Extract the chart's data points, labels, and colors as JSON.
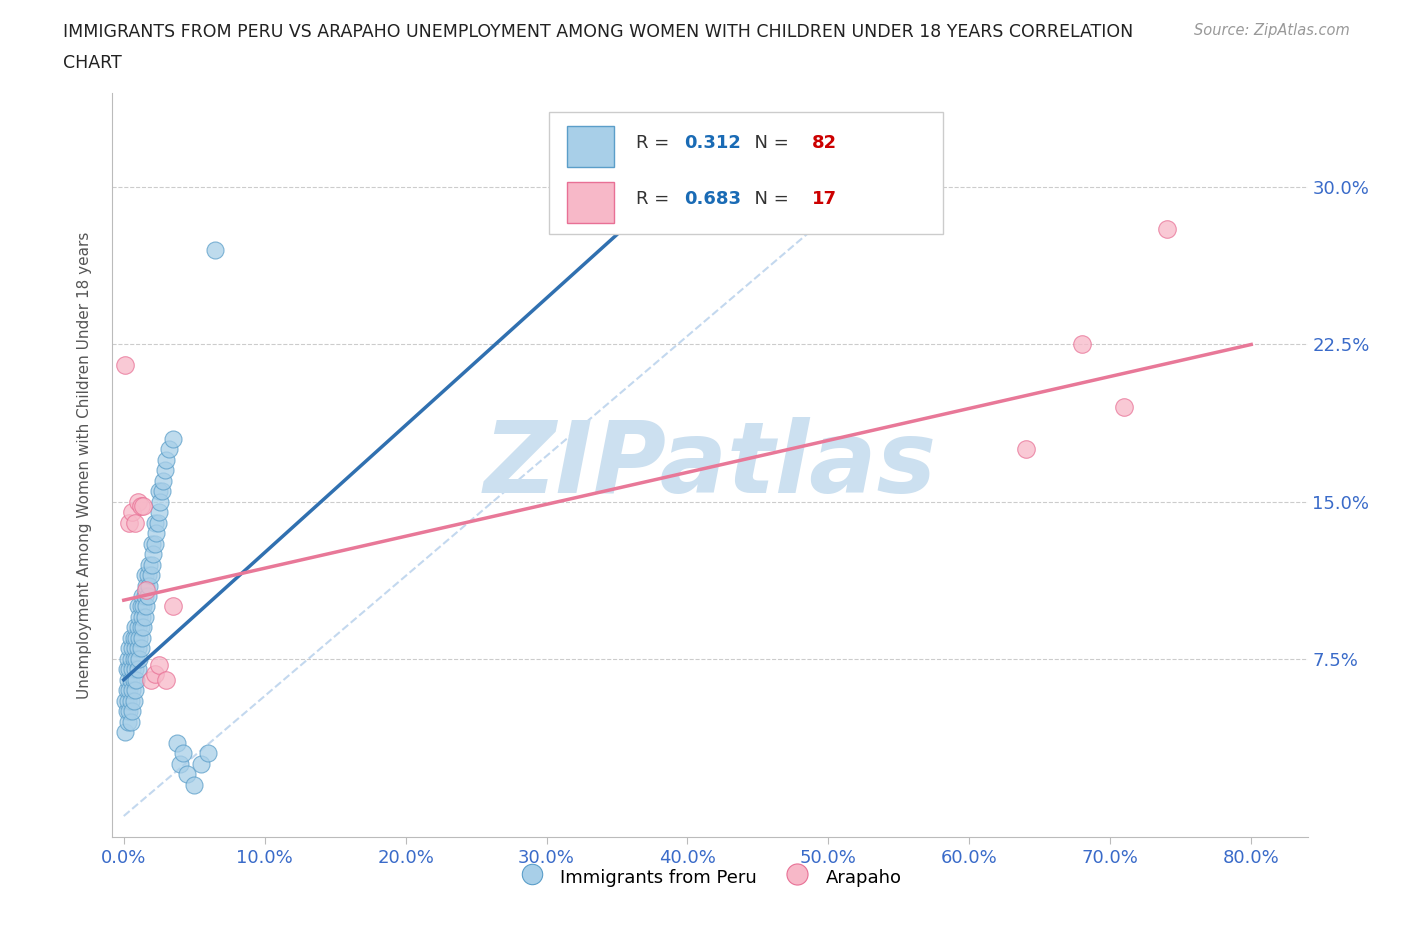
{
  "title_line1": "IMMIGRANTS FROM PERU VS ARAPAHO UNEMPLOYMENT AMONG WOMEN WITH CHILDREN UNDER 18 YEARS CORRELATION",
  "title_line2": "CHART",
  "source": "Source: ZipAtlas.com",
  "ylabel": "Unemployment Among Women with Children Under 18 years",
  "xlim": [
    -0.008,
    0.84
  ],
  "ylim": [
    -0.01,
    0.345
  ],
  "xticks": [
    0.0,
    0.1,
    0.2,
    0.3,
    0.4,
    0.5,
    0.6,
    0.7,
    0.8
  ],
  "xticklabels": [
    "0.0%",
    "10.0%",
    "20.0%",
    "30.0%",
    "40.0%",
    "50.0%",
    "60.0%",
    "70.0%",
    "80.0%"
  ],
  "yticks": [
    0.075,
    0.15,
    0.225,
    0.3
  ],
  "yticklabels": [
    "7.5%",
    "15.0%",
    "22.5%",
    "30.0%"
  ],
  "grid_color": "#cccccc",
  "background_color": "#ffffff",
  "watermark": "ZIPatlas",
  "watermark_color": "#cce0f0",
  "peru_color": "#a8cfe8",
  "peru_edge_color": "#5b9ec9",
  "arapaho_color": "#f7b8c8",
  "arapaho_edge_color": "#e87095",
  "peru_R": 0.312,
  "peru_N": 82,
  "arapaho_R": 0.683,
  "arapaho_N": 17,
  "legend_R_color": "#1a6bb5",
  "legend_N_color": "#cc0000",
  "peru_trendline_color": "#3070b0",
  "arapaho_trendline_color": "#e87898",
  "peru_trend_x": [
    0.0,
    0.42
  ],
  "peru_trend_y": [
    0.065,
    0.32
  ],
  "arapaho_trend_x": [
    0.0,
    0.8
  ],
  "arapaho_trend_y": [
    0.103,
    0.225
  ],
  "peru_scatter_x": [
    0.001,
    0.001,
    0.002,
    0.002,
    0.002,
    0.003,
    0.003,
    0.003,
    0.003,
    0.004,
    0.004,
    0.004,
    0.004,
    0.005,
    0.005,
    0.005,
    0.005,
    0.005,
    0.006,
    0.006,
    0.006,
    0.006,
    0.007,
    0.007,
    0.007,
    0.007,
    0.008,
    0.008,
    0.008,
    0.008,
    0.009,
    0.009,
    0.009,
    0.01,
    0.01,
    0.01,
    0.01,
    0.011,
    0.011,
    0.011,
    0.012,
    0.012,
    0.012,
    0.013,
    0.013,
    0.013,
    0.014,
    0.014,
    0.015,
    0.015,
    0.015,
    0.016,
    0.016,
    0.017,
    0.017,
    0.018,
    0.018,
    0.019,
    0.02,
    0.02,
    0.021,
    0.022,
    0.022,
    0.023,
    0.024,
    0.025,
    0.025,
    0.026,
    0.027,
    0.028,
    0.029,
    0.03,
    0.032,
    0.035,
    0.038,
    0.04,
    0.042,
    0.045,
    0.05,
    0.055,
    0.06,
    0.065
  ],
  "peru_scatter_y": [
    0.04,
    0.055,
    0.05,
    0.06,
    0.07,
    0.045,
    0.055,
    0.065,
    0.075,
    0.05,
    0.06,
    0.07,
    0.08,
    0.045,
    0.055,
    0.065,
    0.075,
    0.085,
    0.05,
    0.06,
    0.07,
    0.08,
    0.055,
    0.065,
    0.075,
    0.085,
    0.06,
    0.07,
    0.08,
    0.09,
    0.065,
    0.075,
    0.085,
    0.07,
    0.08,
    0.09,
    0.1,
    0.075,
    0.085,
    0.095,
    0.08,
    0.09,
    0.1,
    0.085,
    0.095,
    0.105,
    0.09,
    0.1,
    0.095,
    0.105,
    0.115,
    0.1,
    0.11,
    0.105,
    0.115,
    0.11,
    0.12,
    0.115,
    0.12,
    0.13,
    0.125,
    0.13,
    0.14,
    0.135,
    0.14,
    0.145,
    0.155,
    0.15,
    0.155,
    0.16,
    0.165,
    0.17,
    0.175,
    0.18,
    0.035,
    0.025,
    0.03,
    0.02,
    0.015,
    0.025,
    0.03,
    0.27
  ],
  "arapaho_scatter_x": [
    0.001,
    0.004,
    0.006,
    0.008,
    0.01,
    0.012,
    0.014,
    0.016,
    0.019,
    0.022,
    0.025,
    0.03,
    0.035,
    0.64,
    0.68,
    0.71,
    0.74
  ],
  "arapaho_scatter_y": [
    0.215,
    0.14,
    0.145,
    0.14,
    0.15,
    0.148,
    0.148,
    0.108,
    0.065,
    0.068,
    0.072,
    0.065,
    0.1,
    0.175,
    0.225,
    0.195,
    0.28
  ]
}
